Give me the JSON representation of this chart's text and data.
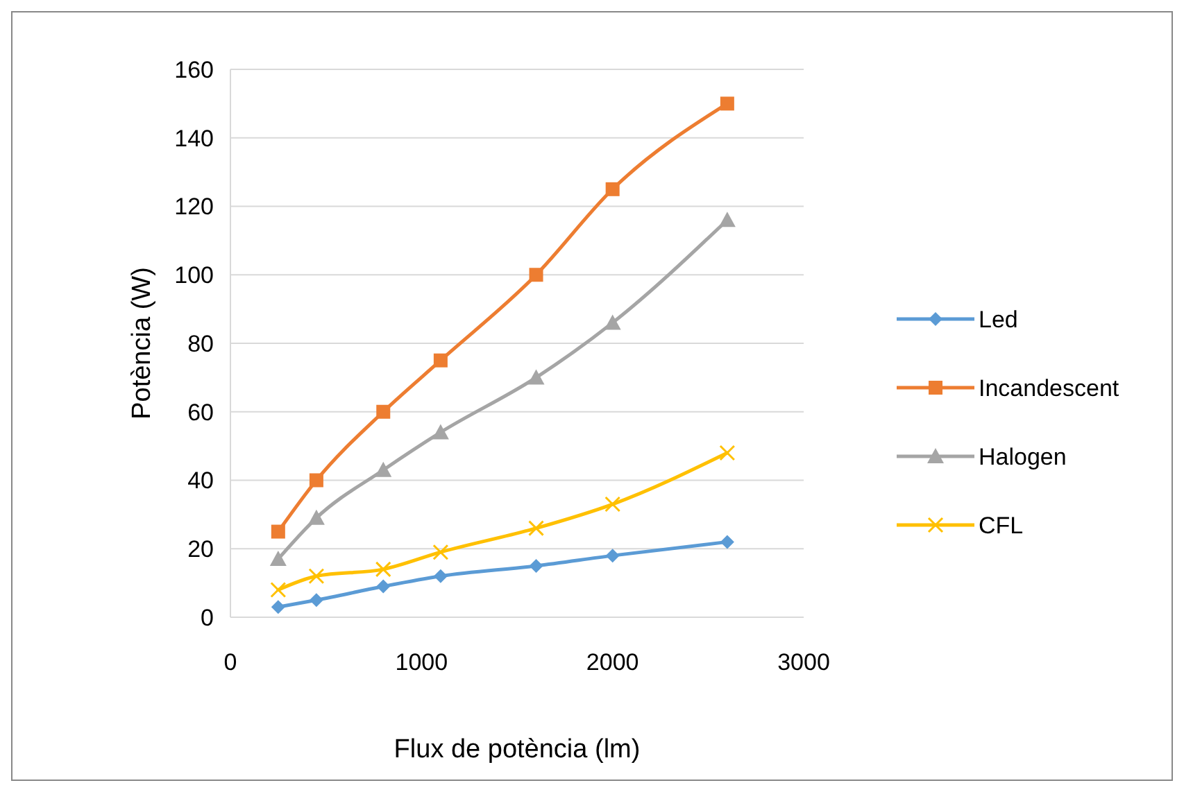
{
  "chart_data": {
    "type": "line",
    "xlabel": "Flux de potència (lm)",
    "ylabel": "Potència (W)",
    "x": [
      250,
      450,
      800,
      1100,
      1600,
      2000,
      2600
    ],
    "series": [
      {
        "name": "Led",
        "color": "#5b9bd5",
        "marker": "diamond",
        "values": [
          3,
          5,
          9,
          12,
          15,
          18,
          22
        ]
      },
      {
        "name": "Incandescent",
        "color": "#ed7d31",
        "marker": "square",
        "values": [
          25,
          40,
          60,
          75,
          100,
          125,
          150
        ]
      },
      {
        "name": "Halogen",
        "color": "#a5a5a5",
        "marker": "triangle",
        "values": [
          17,
          29,
          43,
          54,
          70,
          86,
          116
        ]
      },
      {
        "name": "CFL",
        "color": "#ffc000",
        "marker": "cross",
        "values": [
          8,
          12,
          14,
          19,
          26,
          33,
          48
        ]
      }
    ],
    "xlim": [
      0,
      3000
    ],
    "xticks": [
      0,
      1000,
      2000,
      3000
    ],
    "ylim": [
      0,
      160
    ],
    "yticks": [
      0,
      20,
      40,
      60,
      80,
      100,
      120,
      140,
      160
    ],
    "grid": "y",
    "legend": "right",
    "line_style": "solid"
  }
}
